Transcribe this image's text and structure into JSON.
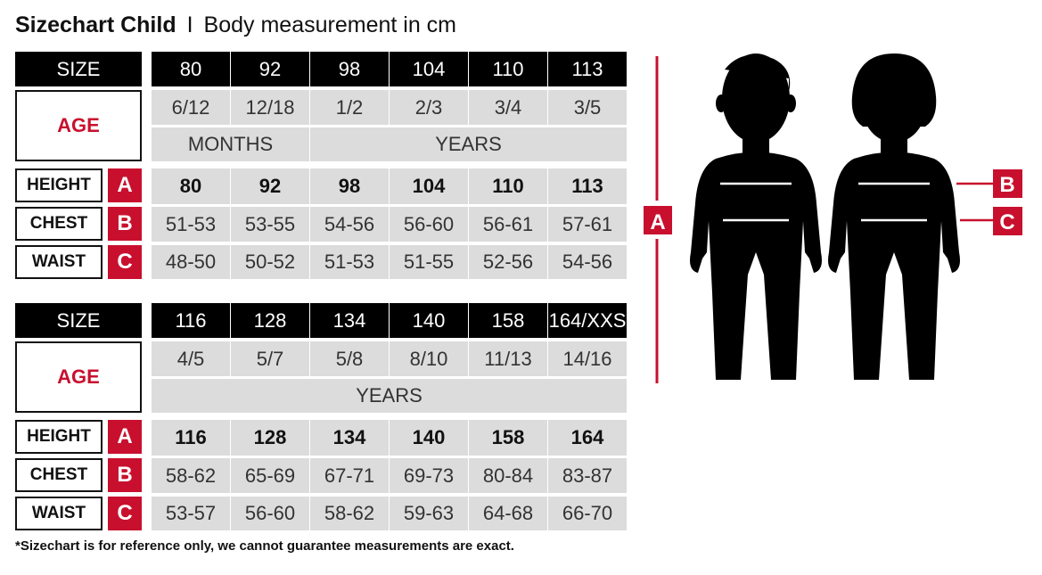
{
  "title": {
    "main": "Sizechart Child",
    "separator": "I",
    "subtitle": "Body measurement in cm"
  },
  "labels": {
    "size": "SIZE",
    "age": "AGE",
    "height": "HEIGHT",
    "chest": "CHEST",
    "waist": "WAIST",
    "height_letter": "A",
    "chest_letter": "B",
    "waist_letter": "C"
  },
  "tables": [
    {
      "sizes": [
        "80",
        "92",
        "98",
        "104",
        "110",
        "113"
      ],
      "ages": [
        "6/12",
        "12/18",
        "1/2",
        "2/3",
        "3/4",
        "3/5"
      ],
      "units": [
        {
          "label": "MONTHS",
          "span": 2
        },
        {
          "label": "YEARS",
          "span": 4
        }
      ],
      "height": [
        "80",
        "92",
        "98",
        "104",
        "110",
        "113"
      ],
      "chest": [
        "51-53",
        "53-55",
        "54-56",
        "56-60",
        "56-61",
        "57-61"
      ],
      "waist": [
        "48-50",
        "50-52",
        "51-53",
        "51-55",
        "52-56",
        "54-56"
      ]
    },
    {
      "sizes": [
        "116",
        "128",
        "134",
        "140",
        "158",
        "164/XXS"
      ],
      "ages": [
        "4/5",
        "5/7",
        "5/8",
        "8/10",
        "11/13",
        "14/16"
      ],
      "units": [
        {
          "label": "YEARS",
          "span": 6
        }
      ],
      "height": [
        "116",
        "128",
        "134",
        "140",
        "158",
        "164"
      ],
      "chest": [
        "58-62",
        "65-69",
        "67-71",
        "69-73",
        "80-84",
        "83-87"
      ],
      "waist": [
        "53-57",
        "56-60",
        "58-62",
        "59-63",
        "64-68",
        "66-70"
      ]
    }
  ],
  "figure": {
    "height_marker": "A",
    "chest_marker": "B",
    "waist_marker": "C"
  },
  "footnote": "*Sizechart is for reference only, we cannot guarantee measurements are exact.",
  "colors": {
    "accent_red": "#c8102e",
    "header_black": "#000000",
    "cell_grey": "#dcdcdc"
  }
}
